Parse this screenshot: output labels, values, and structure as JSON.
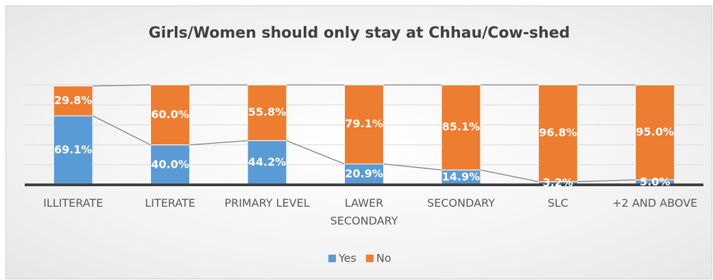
{
  "chart_data": {
    "type": "stacked_bar",
    "title": "Girls/Women should only stay at Chhau/Cow-shed",
    "categories": [
      "ILLITERATE",
      "LITERATE",
      "PRIMARY LEVEL",
      "LAWER SECONDARY",
      "SECONDARY",
      "SLC",
      "+2 AND ABOVE"
    ],
    "series": [
      {
        "name": "Yes",
        "color": "#5b9bd5",
        "values": [
          69.1,
          40.0,
          44.2,
          20.9,
          14.9,
          3.2,
          5.0
        ],
        "value_labels": [
          "69.1%",
          "40.0%",
          "44.2%",
          "20.9%",
          "14.9%",
          "3.2%",
          "5.0%"
        ]
      },
      {
        "name": "No",
        "color": "#ed7d31",
        "values": [
          29.8,
          60.0,
          55.8,
          79.1,
          85.1,
          96.8,
          95.0
        ],
        "value_labels": [
          "29.8%",
          "60.0%",
          "55.8%",
          "79.1%",
          "85.1%",
          "96.8%",
          "95.0%"
        ]
      }
    ],
    "ylim": [
      0,
      100
    ],
    "yticks": [
      0,
      20,
      40,
      60,
      80,
      100
    ],
    "grid": true,
    "legend": "bottom"
  }
}
